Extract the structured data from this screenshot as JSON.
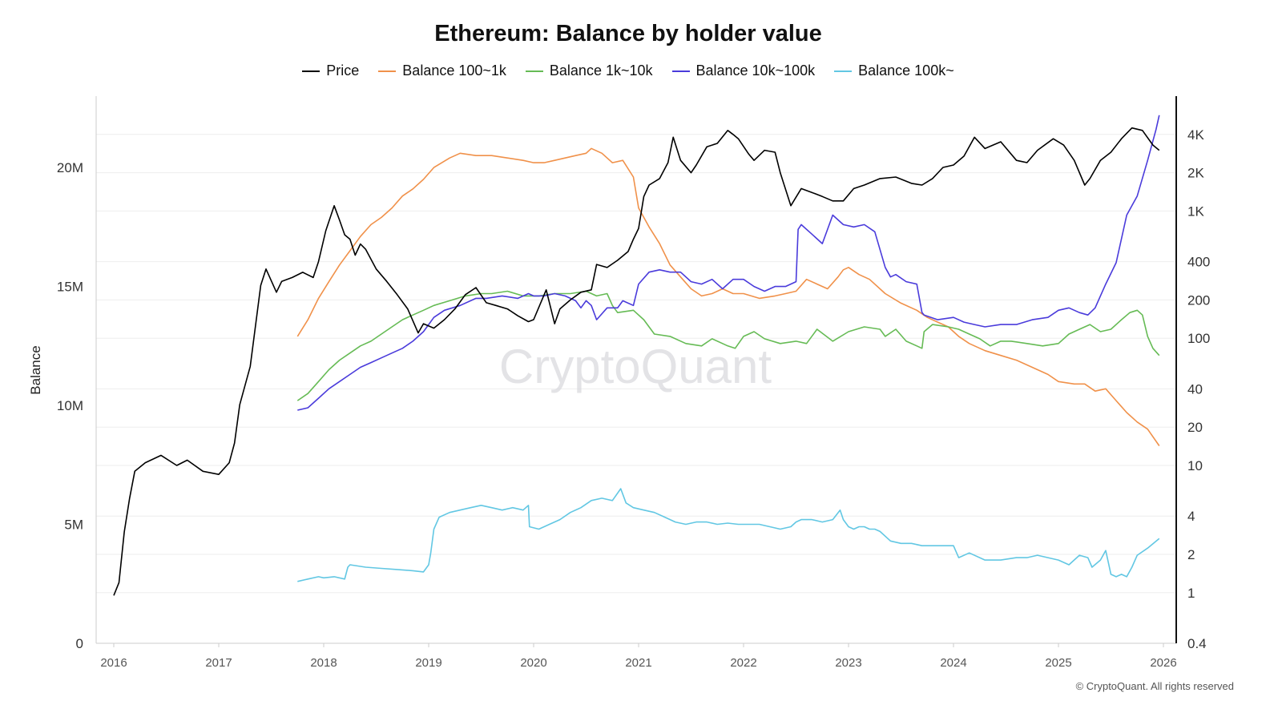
{
  "chart_data": {
    "type": "line",
    "title": "Ethereum: Balance by holder value",
    "ylabel": "Balance",
    "y_left_ticks": [
      "0",
      "5M",
      "10M",
      "15M",
      "20M"
    ],
    "y_left_range": [
      0,
      23000000
    ],
    "y_right_scale": "log",
    "y_right_ticks": [
      "0.4",
      "1",
      "2",
      "4",
      "10",
      "20",
      "40",
      "100",
      "200",
      "400",
      "1K",
      "2K",
      "4K"
    ],
    "y_right_range": [
      0.4,
      8000
    ],
    "x_ticks": [
      "2016",
      "2017",
      "2018",
      "2019",
      "2020",
      "2021",
      "2022",
      "2023",
      "2024",
      "2025",
      "2026"
    ],
    "x_range": [
      2016.0,
      2026.0
    ],
    "watermark": "CryptoQuant",
    "copyright": "© CryptoQuant. All rights reserved",
    "grid": "horizontal",
    "legend_position": "top-center",
    "series": [
      {
        "name": "Price",
        "axis": "right",
        "color": "#000000",
        "x": [
          2016.0,
          2016.05,
          2016.1,
          2016.15,
          2016.2,
          2016.3,
          2016.45,
          2016.6,
          2016.7,
          2016.85,
          2017.0,
          2017.1,
          2017.15,
          2017.2,
          2017.3,
          2017.4,
          2017.45,
          2017.55,
          2017.6,
          2017.7,
          2017.8,
          2017.9,
          2017.95,
          2018.02,
          2018.1,
          2018.15,
          2018.2,
          2018.25,
          2018.3,
          2018.35,
          2018.4,
          2018.5,
          2018.6,
          2018.7,
          2018.8,
          2018.9,
          2018.95,
          2019.05,
          2019.15,
          2019.25,
          2019.35,
          2019.45,
          2019.55,
          2019.65,
          2019.75,
          2019.85,
          2019.95,
          2020.0,
          2020.12,
          2020.2,
          2020.25,
          2020.35,
          2020.45,
          2020.55,
          2020.6,
          2020.7,
          2020.8,
          2020.9,
          2020.95,
          2021.0,
          2021.05,
          2021.1,
          2021.2,
          2021.28,
          2021.33,
          2021.4,
          2021.5,
          2021.55,
          2021.65,
          2021.75,
          2021.85,
          2021.9,
          2021.95,
          2022.05,
          2022.1,
          2022.2,
          2022.3,
          2022.35,
          2022.45,
          2022.55,
          2022.65,
          2022.75,
          2022.85,
          2022.95,
          2023.05,
          2023.15,
          2023.3,
          2023.45,
          2023.6,
          2023.7,
          2023.8,
          2023.9,
          2024.0,
          2024.1,
          2024.2,
          2024.3,
          2024.45,
          2024.6,
          2024.7,
          2024.8,
          2024.95,
          2025.05,
          2025.15,
          2025.25,
          2025.3,
          2025.4,
          2025.5,
          2025.6,
          2025.7,
          2025.8,
          2025.9,
          2025.96
        ],
        "y": [
          0.95,
          1.2,
          3,
          5.5,
          9,
          10.5,
          12,
          10,
          11,
          9,
          8.5,
          10.5,
          15,
          30,
          60,
          260,
          350,
          230,
          280,
          300,
          330,
          300,
          400,
          700,
          1100,
          850,
          650,
          600,
          450,
          550,
          500,
          350,
          280,
          220,
          170,
          110,
          130,
          120,
          140,
          170,
          220,
          250,
          190,
          180,
          170,
          150,
          135,
          140,
          240,
          130,
          170,
          200,
          230,
          240,
          380,
          360,
          410,
          480,
          600,
          730,
          1300,
          1600,
          1800,
          2400,
          3800,
          2500,
          2000,
          2300,
          3200,
          3400,
          4300,
          4000,
          3700,
          2800,
          2500,
          3000,
          2900,
          2000,
          1100,
          1500,
          1400,
          1300,
          1200,
          1200,
          1500,
          1600,
          1800,
          1850,
          1650,
          1600,
          1800,
          2200,
          2300,
          2700,
          3800,
          3100,
          3500,
          2500,
          2400,
          3000,
          3700,
          3300,
          2500,
          1600,
          1800,
          2500,
          2900,
          3700,
          4500,
          4300,
          3300,
          3000
        ]
      },
      {
        "name": "Balance 100~1k",
        "axis": "left",
        "color": "#f0914a",
        "x": [
          2017.75,
          2017.85,
          2017.95,
          2018.05,
          2018.15,
          2018.25,
          2018.35,
          2018.45,
          2018.55,
          2018.65,
          2018.75,
          2018.85,
          2018.95,
          2019.05,
          2019.2,
          2019.3,
          2019.45,
          2019.6,
          2019.75,
          2019.9,
          2020.0,
          2020.1,
          2020.2,
          2020.3,
          2020.4,
          2020.5,
          2020.55,
          2020.65,
          2020.75,
          2020.85,
          2020.95,
          2021.0,
          2021.1,
          2021.2,
          2021.3,
          2021.4,
          2021.5,
          2021.6,
          2021.7,
          2021.8,
          2021.9,
          2022.0,
          2022.15,
          2022.3,
          2022.4,
          2022.5,
          2022.6,
          2022.7,
          2022.8,
          2022.9,
          2022.95,
          2023.0,
          2023.1,
          2023.2,
          2023.35,
          2023.5,
          2023.65,
          2023.75,
          2023.85,
          2023.95,
          2024.05,
          2024.15,
          2024.3,
          2024.45,
          2024.6,
          2024.75,
          2024.9,
          2025.0,
          2025.15,
          2025.25,
          2025.35,
          2025.45,
          2025.55,
          2025.65,
          2025.75,
          2025.85,
          2025.96
        ],
        "y": [
          12.9,
          13.6,
          14.5,
          15.2,
          15.9,
          16.5,
          17.1,
          17.6,
          17.9,
          18.3,
          18.8,
          19.1,
          19.5,
          20.0,
          20.4,
          20.6,
          20.5,
          20.5,
          20.4,
          20.3,
          20.2,
          20.2,
          20.3,
          20.4,
          20.5,
          20.6,
          20.8,
          20.6,
          20.2,
          20.3,
          19.6,
          18.3,
          17.5,
          16.8,
          15.9,
          15.4,
          14.9,
          14.6,
          14.7,
          14.9,
          14.7,
          14.7,
          14.5,
          14.6,
          14.7,
          14.8,
          15.3,
          15.1,
          14.9,
          15.4,
          15.7,
          15.8,
          15.5,
          15.3,
          14.7,
          14.3,
          14.0,
          13.7,
          13.5,
          13.3,
          12.9,
          12.6,
          12.3,
          12.1,
          11.9,
          11.6,
          11.3,
          11.0,
          10.9,
          10.9,
          10.6,
          10.7,
          10.2,
          9.7,
          9.3,
          9.0,
          8.3
        ]
      },
      {
        "name": "Balance 1k~10k",
        "axis": "left",
        "color": "#66bb55",
        "x": [
          2017.75,
          2017.85,
          2017.95,
          2018.05,
          2018.15,
          2018.25,
          2018.35,
          2018.45,
          2018.55,
          2018.65,
          2018.75,
          2018.85,
          2018.95,
          2019.05,
          2019.2,
          2019.35,
          2019.5,
          2019.6,
          2019.75,
          2019.9,
          2020.05,
          2020.2,
          2020.35,
          2020.5,
          2020.6,
          2020.7,
          2020.75,
          2020.8,
          2020.95,
          2021.05,
          2021.15,
          2021.3,
          2021.45,
          2021.6,
          2021.7,
          2021.85,
          2021.92,
          2022.0,
          2022.1,
          2022.2,
          2022.35,
          2022.5,
          2022.6,
          2022.7,
          2022.85,
          2023.0,
          2023.15,
          2023.3,
          2023.35,
          2023.45,
          2023.55,
          2023.65,
          2023.7,
          2023.72,
          2023.8,
          2023.95,
          2024.05,
          2024.15,
          2024.25,
          2024.35,
          2024.45,
          2024.55,
          2024.7,
          2024.85,
          2025.0,
          2025.1,
          2025.2,
          2025.3,
          2025.4,
          2025.5,
          2025.6,
          2025.68,
          2025.75,
          2025.8,
          2025.85,
          2025.9,
          2025.96
        ],
        "y": [
          10.2,
          10.5,
          11.0,
          11.5,
          11.9,
          12.2,
          12.5,
          12.7,
          13.0,
          13.3,
          13.6,
          13.8,
          14.0,
          14.2,
          14.4,
          14.6,
          14.7,
          14.7,
          14.8,
          14.6,
          14.6,
          14.7,
          14.7,
          14.8,
          14.6,
          14.7,
          14.2,
          13.9,
          14.0,
          13.6,
          13.0,
          12.9,
          12.6,
          12.5,
          12.8,
          12.5,
          12.4,
          12.9,
          13.1,
          12.8,
          12.6,
          12.7,
          12.6,
          13.2,
          12.7,
          13.1,
          13.3,
          13.2,
          12.9,
          13.2,
          12.7,
          12.5,
          12.4,
          13.1,
          13.4,
          13.3,
          13.2,
          13.0,
          12.8,
          12.5,
          12.7,
          12.7,
          12.6,
          12.5,
          12.6,
          13.0,
          13.2,
          13.4,
          13.1,
          13.2,
          13.6,
          13.9,
          14.0,
          13.8,
          12.9,
          12.4,
          12.1
        ]
      },
      {
        "name": "Balance 10k~100k",
        "axis": "left",
        "color": "#4a3bdb",
        "x": [
          2017.75,
          2017.85,
          2017.95,
          2018.05,
          2018.15,
          2018.25,
          2018.35,
          2018.45,
          2018.55,
          2018.65,
          2018.75,
          2018.85,
          2018.95,
          2019.05,
          2019.15,
          2019.3,
          2019.45,
          2019.55,
          2019.7,
          2019.85,
          2019.95,
          2020.0,
          2020.1,
          2020.2,
          2020.3,
          2020.4,
          2020.45,
          2020.5,
          2020.55,
          2020.6,
          2020.7,
          2020.8,
          2020.85,
          2020.95,
          2021.0,
          2021.1,
          2021.2,
          2021.3,
          2021.4,
          2021.5,
          2021.6,
          2021.7,
          2021.8,
          2021.9,
          2022.0,
          2022.1,
          2022.2,
          2022.3,
          2022.4,
          2022.5,
          2022.52,
          2022.55,
          2022.65,
          2022.75,
          2022.85,
          2022.95,
          2023.05,
          2023.15,
          2023.25,
          2023.35,
          2023.4,
          2023.45,
          2023.55,
          2023.65,
          2023.7,
          2023.72,
          2023.85,
          2024.0,
          2024.1,
          2024.2,
          2024.3,
          2024.45,
          2024.6,
          2024.75,
          2024.9,
          2025.0,
          2025.1,
          2025.2,
          2025.28,
          2025.35,
          2025.45,
          2025.55,
          2025.65,
          2025.75,
          2025.85,
          2025.93,
          2025.96
        ],
        "y": [
          9.8,
          9.9,
          10.3,
          10.7,
          11.0,
          11.3,
          11.6,
          11.8,
          12.0,
          12.2,
          12.4,
          12.7,
          13.1,
          13.7,
          14.0,
          14.2,
          14.5,
          14.5,
          14.6,
          14.5,
          14.7,
          14.6,
          14.6,
          14.7,
          14.6,
          14.4,
          14.1,
          14.4,
          14.2,
          13.6,
          14.1,
          14.1,
          14.4,
          14.2,
          15.1,
          15.6,
          15.7,
          15.6,
          15.6,
          15.2,
          15.1,
          15.3,
          14.9,
          15.3,
          15.3,
          15.0,
          14.8,
          15.0,
          15.0,
          15.2,
          17.4,
          17.6,
          17.2,
          16.8,
          18.0,
          17.6,
          17.5,
          17.6,
          17.3,
          15.8,
          15.4,
          15.5,
          15.2,
          15.1,
          13.9,
          13.8,
          13.6,
          13.7,
          13.5,
          13.4,
          13.3,
          13.4,
          13.4,
          13.6,
          13.7,
          14.0,
          14.1,
          13.9,
          13.8,
          14.1,
          15.1,
          16.0,
          18.0,
          18.8,
          20.3,
          21.6,
          22.2
        ]
      },
      {
        "name": "Balance 100k~",
        "axis": "left",
        "color": "#62c7e3",
        "x": [
          2017.75,
          2017.85,
          2017.95,
          2018.0,
          2018.1,
          2018.2,
          2018.23,
          2018.25,
          2018.4,
          2018.55,
          2018.7,
          2018.85,
          2018.95,
          2019.0,
          2019.02,
          2019.05,
          2019.1,
          2019.2,
          2019.3,
          2019.4,
          2019.5,
          2019.6,
          2019.7,
          2019.8,
          2019.9,
          2019.95,
          2019.96,
          2020.05,
          2020.15,
          2020.25,
          2020.35,
          2020.45,
          2020.55,
          2020.65,
          2020.75,
          2020.83,
          2020.88,
          2020.95,
          2021.05,
          2021.15,
          2021.25,
          2021.35,
          2021.45,
          2021.55,
          2021.65,
          2021.75,
          2021.85,
          2021.95,
          2022.05,
          2022.15,
          2022.25,
          2022.35,
          2022.45,
          2022.5,
          2022.55,
          2022.65,
          2022.75,
          2022.85,
          2022.92,
          2022.95,
          2023.0,
          2023.05,
          2023.1,
          2023.15,
          2023.2,
          2023.25,
          2023.3,
          2023.4,
          2023.5,
          2023.6,
          2023.7,
          2023.72,
          2023.8,
          2023.9,
          2024.0,
          2024.02,
          2024.05,
          2024.15,
          2024.3,
          2024.45,
          2024.6,
          2024.7,
          2024.8,
          2024.9,
          2025.0,
          2025.1,
          2025.2,
          2025.28,
          2025.32,
          2025.4,
          2025.45,
          2025.5,
          2025.55,
          2025.6,
          2025.65,
          2025.7,
          2025.75,
          2025.85,
          2025.96
        ],
        "y": [
          2.6,
          2.7,
          2.8,
          2.75,
          2.8,
          2.7,
          3.2,
          3.3,
          3.2,
          3.15,
          3.1,
          3.05,
          3.0,
          3.3,
          3.8,
          4.8,
          5.3,
          5.5,
          5.6,
          5.7,
          5.8,
          5.7,
          5.6,
          5.7,
          5.6,
          5.8,
          4.9,
          4.8,
          5.0,
          5.2,
          5.5,
          5.7,
          6.0,
          6.1,
          6.0,
          6.5,
          5.9,
          5.7,
          5.6,
          5.5,
          5.3,
          5.1,
          5.0,
          5.1,
          5.1,
          5.0,
          5.05,
          5.0,
          5.0,
          5.0,
          4.9,
          4.8,
          4.9,
          5.1,
          5.2,
          5.2,
          5.1,
          5.2,
          5.6,
          5.2,
          4.9,
          4.8,
          4.9,
          4.9,
          4.8,
          4.8,
          4.7,
          4.3,
          4.2,
          4.2,
          4.1,
          4.1,
          4.1,
          4.1,
          4.1,
          3.9,
          3.6,
          3.8,
          3.5,
          3.5,
          3.6,
          3.6,
          3.7,
          3.6,
          3.5,
          3.3,
          3.7,
          3.6,
          3.2,
          3.5,
          3.9,
          2.9,
          2.8,
          2.9,
          2.8,
          3.2,
          3.7,
          4.0,
          4.4
        ]
      }
    ]
  }
}
